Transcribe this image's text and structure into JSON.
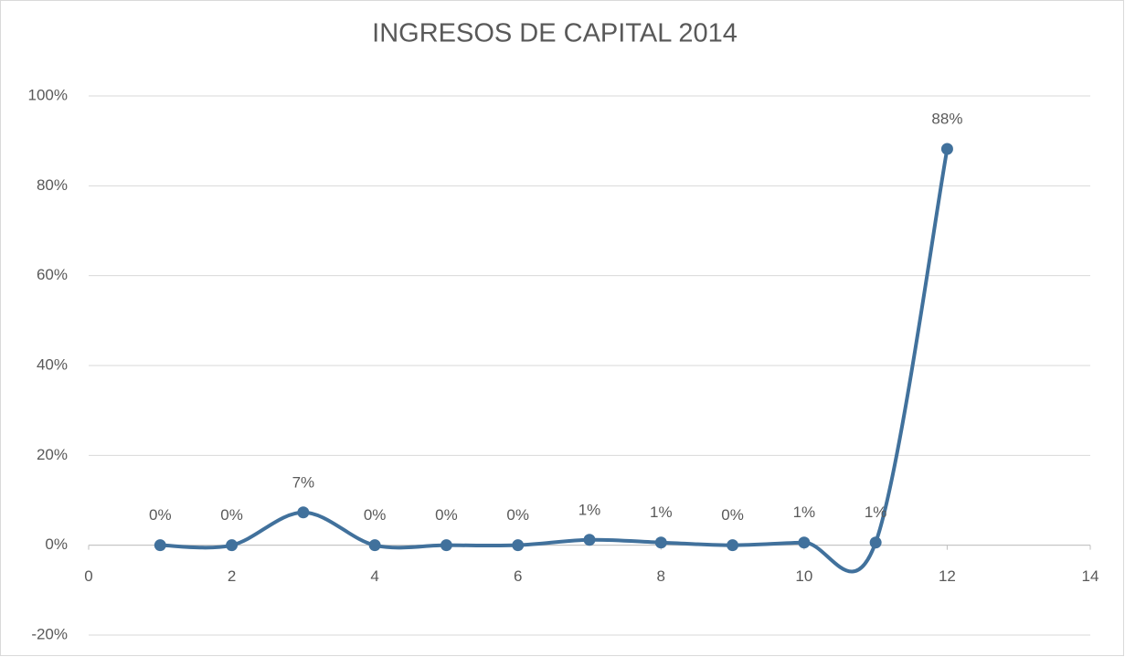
{
  "chart_data": {
    "type": "line",
    "title": "INGRESOS DE CAPITAL 2014",
    "series": [
      {
        "color": "#41719c",
        "x": [
          1,
          2,
          3,
          4,
          5,
          6,
          7,
          8,
          9,
          10,
          11,
          12
        ],
        "values": [
          0,
          0,
          7.3,
          0,
          0,
          0,
          1.2,
          0.6,
          0,
          0.6,
          0.6,
          88.2
        ],
        "value_labels": [
          "0%",
          "0%",
          "7%",
          "0%",
          "0%",
          "0%",
          "1%",
          "1%",
          "0%",
          "1%",
          "1%",
          "88%"
        ]
      }
    ],
    "xlim": [
      0,
      14
    ],
    "xticks": [
      0,
      2,
      4,
      6,
      8,
      10,
      12,
      14
    ],
    "ylim": [
      -20,
      100
    ],
    "yticks": [
      {
        "value": -20,
        "label": "-20%"
      },
      {
        "value": 0,
        "label": "0%"
      },
      {
        "value": 20,
        "label": "20%"
      },
      {
        "value": 40,
        "label": "40%"
      },
      {
        "value": 60,
        "label": "60%"
      },
      {
        "value": 80,
        "label": "80%"
      },
      {
        "value": 100,
        "label": "100%"
      }
    ],
    "grid": true,
    "smooth": true
  }
}
